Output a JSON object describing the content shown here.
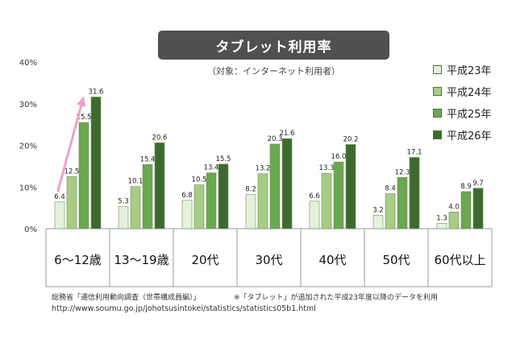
{
  "title": "タブレット利用率",
  "subtitle": "（対象：インターネット利用者）",
  "source": "総務省「通信利用動向調査（世帯構成員編）」",
  "note": "※「タブレット」が追加された平成23年度以降のデータを利用",
  "url": "http://www.soumu.go.jp/johotsusintokei/statistics/statistics05b1.html",
  "colors": {
    "series": [
      "#e6f1dc",
      "#a6cc86",
      "#6aa84f",
      "#3d6b2e"
    ],
    "arrow": "#f0a0c8",
    "axis": "#999999",
    "grid": "#d9d9d9"
  },
  "chart_data": {
    "type": "bar",
    "title": "タブレット利用率",
    "categories": [
      "6～12歳",
      "13～19歳",
      "20代",
      "30代",
      "40代",
      "50代",
      "60代以上"
    ],
    "series": [
      {
        "name": "平成23年",
        "values": [
          6.4,
          5.3,
          6.8,
          8.2,
          6.6,
          3.2,
          1.3
        ]
      },
      {
        "name": "平成24年",
        "values": [
          12.5,
          10.1,
          10.5,
          13.2,
          13.3,
          8.4,
          4.0
        ]
      },
      {
        "name": "平成25年",
        "values": [
          25.5,
          15.4,
          13.4,
          20.3,
          16.0,
          12.3,
          8.9
        ]
      },
      {
        "name": "平成26年",
        "values": [
          31.6,
          20.6,
          15.5,
          21.6,
          20.2,
          17.1,
          9.7
        ]
      }
    ],
    "yticks": [
      "0%",
      "10%",
      "20%",
      "30%",
      "40%"
    ],
    "ylim": [
      0,
      40
    ],
    "legend": "right",
    "grid": false
  }
}
